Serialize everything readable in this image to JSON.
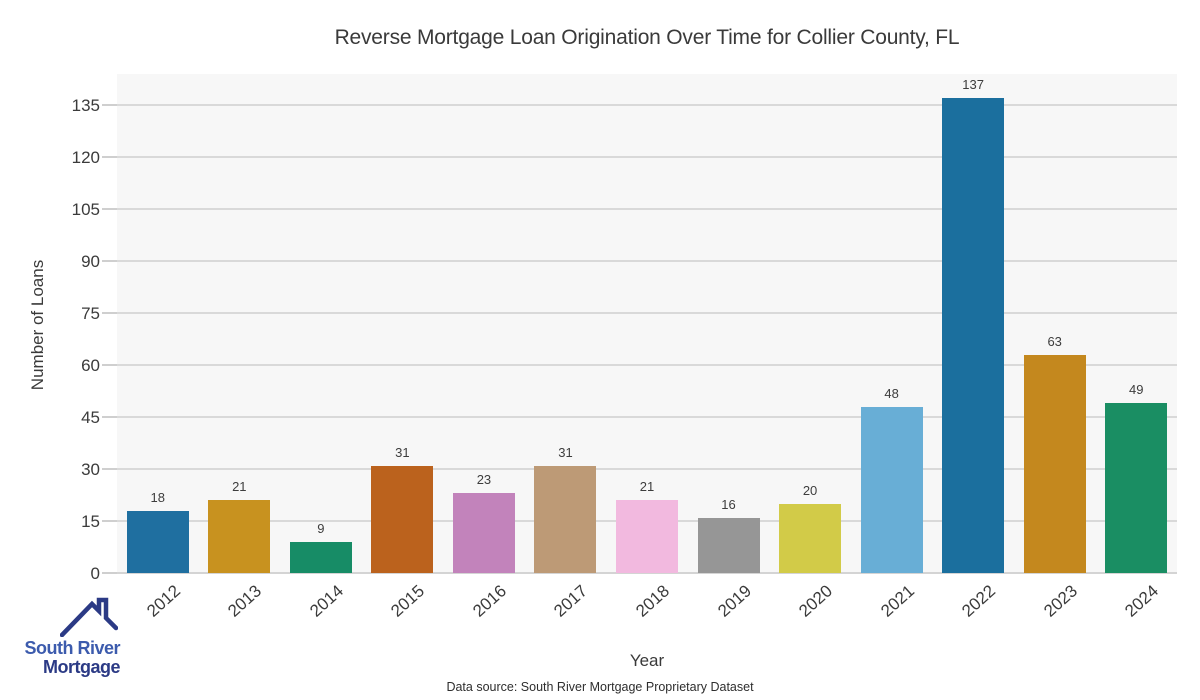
{
  "chart_data": {
    "type": "bar",
    "title": "Reverse Mortgage Loan Origination Over Time for Collier County, FL",
    "xlabel": "Year",
    "ylabel": "Number of Loans",
    "categories": [
      "2012",
      "2013",
      "2014",
      "2015",
      "2016",
      "2017",
      "2018",
      "2019",
      "2020",
      "2021",
      "2022",
      "2023",
      "2024"
    ],
    "values": [
      18,
      21,
      9,
      31,
      23,
      31,
      21,
      16,
      20,
      48,
      137,
      63,
      49
    ],
    "bar_colors": [
      "#1f6fa0",
      "#c8921f",
      "#178c66",
      "#bb621d",
      "#c283bb",
      "#bd9a76",
      "#f2b9df",
      "#969696",
      "#d2cb48",
      "#68aed6",
      "#1b6f9e",
      "#c4881e",
      "#1a8e63"
    ],
    "yticks": [
      0,
      15,
      30,
      45,
      60,
      75,
      90,
      105,
      120,
      135
    ],
    "ylim": [
      0,
      144
    ],
    "grid": true,
    "legend": false,
    "plot_background": "#f7f7f7",
    "grid_color": "#d9d9d9",
    "value_labels_shown": true
  },
  "footer": {
    "source": "Data source: South River Mortgage Proprietary Dataset"
  },
  "logo": {
    "line1": "South River",
    "line2": "Mortgage",
    "color1": "#3c5bad",
    "color2": "#2b3a85",
    "icon": "house-roof-icon"
  }
}
